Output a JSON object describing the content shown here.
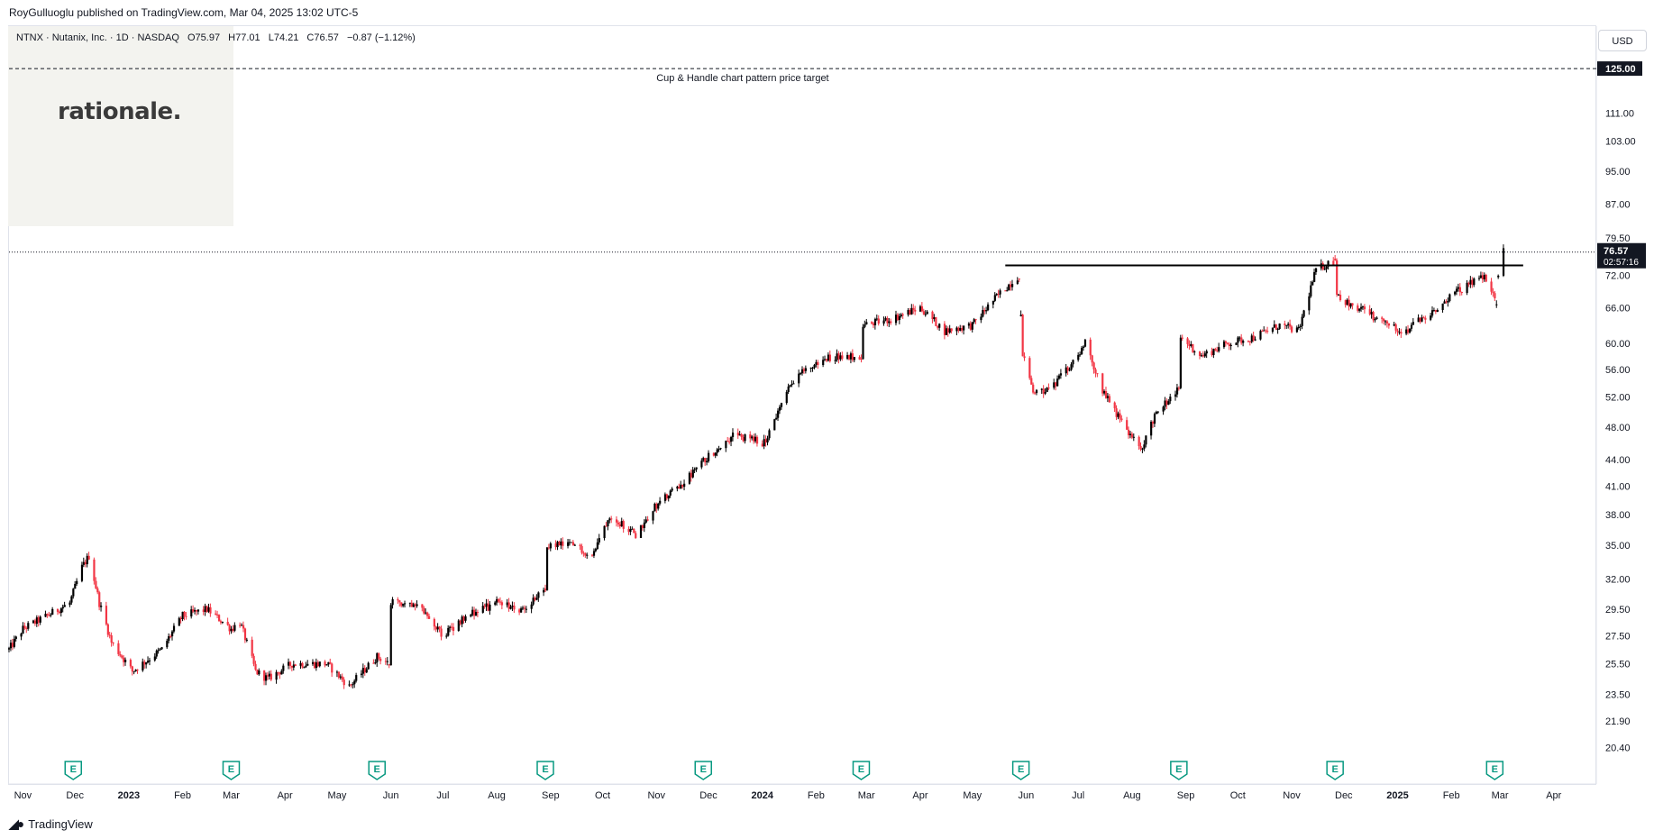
{
  "header": {
    "published": "RoyGulluoglu published on TradingView.com, Mar 04, 2025 13:02 UTC-5"
  },
  "legend": {
    "symbol": "NTNX · Nutanix, Inc. · 1D · NASDAQ",
    "open": "O75.97",
    "high": "H77.01",
    "low": "L74.21",
    "close": "C76.57",
    "change": "−0.87 (−1.12%)"
  },
  "logo": {
    "text": "rationale."
  },
  "currency_button": "USD",
  "footer": {
    "brand": "TradingView"
  },
  "chart_data": {
    "type": "candlestick",
    "y_scale": "log",
    "ylim": [
      18.5,
      140
    ],
    "y_ticks": [
      "20.40",
      "21.90",
      "23.50",
      "25.50",
      "27.50",
      "29.50",
      "32.00",
      "35.00",
      "38.00",
      "41.00",
      "44.00",
      "48.00",
      "52.00",
      "56.00",
      "60.00",
      "66.00",
      "72.00",
      "79.50",
      "87.00",
      "95.00",
      "103.00",
      "111.00"
    ],
    "x_labels": [
      "Nov",
      "Dec",
      "2023",
      "Feb",
      "Mar",
      "Apr",
      "May",
      "Jun",
      "Jul",
      "Aug",
      "Sep",
      "Oct",
      "Nov",
      "Dec",
      "2024",
      "Feb",
      "Mar",
      "Apr",
      "May",
      "Jun",
      "Jul",
      "Aug",
      "Sep",
      "Oct",
      "Nov",
      "Dec",
      "2025",
      "Feb",
      "Mar",
      "Apr"
    ],
    "bold_x_labels": [
      "2023",
      "2024",
      "2025"
    ],
    "x_range": [
      "2022-10-24",
      "2025-04-25"
    ],
    "price_line": {
      "value": 76.57,
      "label": "76.57",
      "countdown": "02:57:16"
    },
    "target_line": {
      "value": 125.0,
      "label": "125.00",
      "annotation": "Cup & Handle chart pattern price target"
    },
    "resistance_line": {
      "value": 73.9,
      "from": "2024-05-20",
      "to": "2025-03-04"
    },
    "earnings_dates": [
      "2022-11-30",
      "2023-03-01",
      "2023-05-24",
      "2023-08-29",
      "2023-11-28",
      "2024-02-27",
      "2024-05-29",
      "2024-08-28",
      "2024-11-26",
      "2025-02-26"
    ],
    "earnings_label": "E",
    "series_anchors": [
      [
        "2022-10-24",
        26.5
      ],
      [
        "2022-11-01",
        28
      ],
      [
        "2022-11-15",
        29
      ],
      [
        "2022-11-28",
        30
      ],
      [
        "2022-12-05",
        33
      ],
      [
        "2022-12-09",
        34
      ],
      [
        "2022-12-15",
        30
      ],
      [
        "2022-12-22",
        27
      ],
      [
        "2023-01-03",
        25
      ],
      [
        "2023-01-20",
        26.5
      ],
      [
        "2023-02-01",
        29
      ],
      [
        "2023-02-15",
        29.5
      ],
      [
        "2023-03-01",
        28
      ],
      [
        "2023-03-06",
        28.5
      ],
      [
        "2023-03-15",
        25
      ],
      [
        "2023-03-22",
        24.5
      ],
      [
        "2023-04-05",
        25.5
      ],
      [
        "2023-04-25",
        25.5
      ],
      [
        "2023-05-08",
        24
      ],
      [
        "2023-05-24",
        26
      ],
      [
        "2023-05-31",
        25.5
      ],
      [
        "2023-06-01",
        30
      ],
      [
        "2023-06-15",
        30
      ],
      [
        "2023-07-01",
        27.5
      ],
      [
        "2023-07-15",
        29
      ],
      [
        "2023-08-01",
        30
      ],
      [
        "2023-08-15",
        29.5
      ],
      [
        "2023-08-29",
        31
      ],
      [
        "2023-08-30",
        35
      ],
      [
        "2023-09-15",
        35
      ],
      [
        "2023-09-25",
        34
      ],
      [
        "2023-10-05",
        38
      ],
      [
        "2023-10-20",
        36
      ],
      [
        "2023-11-01",
        39
      ],
      [
        "2023-11-15",
        41
      ],
      [
        "2023-11-29",
        44
      ],
      [
        "2023-12-15",
        47
      ],
      [
        "2024-01-02",
        46
      ],
      [
        "2024-01-20",
        55
      ],
      [
        "2024-02-10",
        58
      ],
      [
        "2024-02-27",
        58
      ],
      [
        "2024-02-28",
        63
      ],
      [
        "2024-03-15",
        64
      ],
      [
        "2024-04-01",
        66
      ],
      [
        "2024-04-15",
        62
      ],
      [
        "2024-05-01",
        63
      ],
      [
        "2024-05-15",
        68
      ],
      [
        "2024-05-28",
        72
      ],
      [
        "2024-05-30",
        58
      ],
      [
        "2024-06-05",
        53
      ],
      [
        "2024-06-15",
        53
      ],
      [
        "2024-06-25",
        56
      ],
      [
        "2024-07-05",
        60
      ],
      [
        "2024-07-15",
        53
      ],
      [
        "2024-07-25",
        49
      ],
      [
        "2024-08-06",
        45
      ],
      [
        "2024-08-15",
        50
      ],
      [
        "2024-08-28",
        53
      ],
      [
        "2024-08-29",
        61
      ],
      [
        "2024-09-10",
        58
      ],
      [
        "2024-09-25",
        60
      ],
      [
        "2024-10-10",
        61
      ],
      [
        "2024-10-25",
        63
      ],
      [
        "2024-11-05",
        62
      ],
      [
        "2024-11-15",
        73
      ],
      [
        "2024-11-26",
        75
      ],
      [
        "2024-11-27",
        68
      ],
      [
        "2024-12-10",
        66
      ],
      [
        "2024-12-20",
        64
      ],
      [
        "2025-01-05",
        62
      ],
      [
        "2025-01-20",
        65
      ],
      [
        "2025-02-05",
        69
      ],
      [
        "2025-02-20",
        72
      ],
      [
        "2025-02-27",
        67
      ],
      [
        "2025-03-01",
        77
      ],
      [
        "2025-03-04",
        76.57
      ]
    ]
  }
}
